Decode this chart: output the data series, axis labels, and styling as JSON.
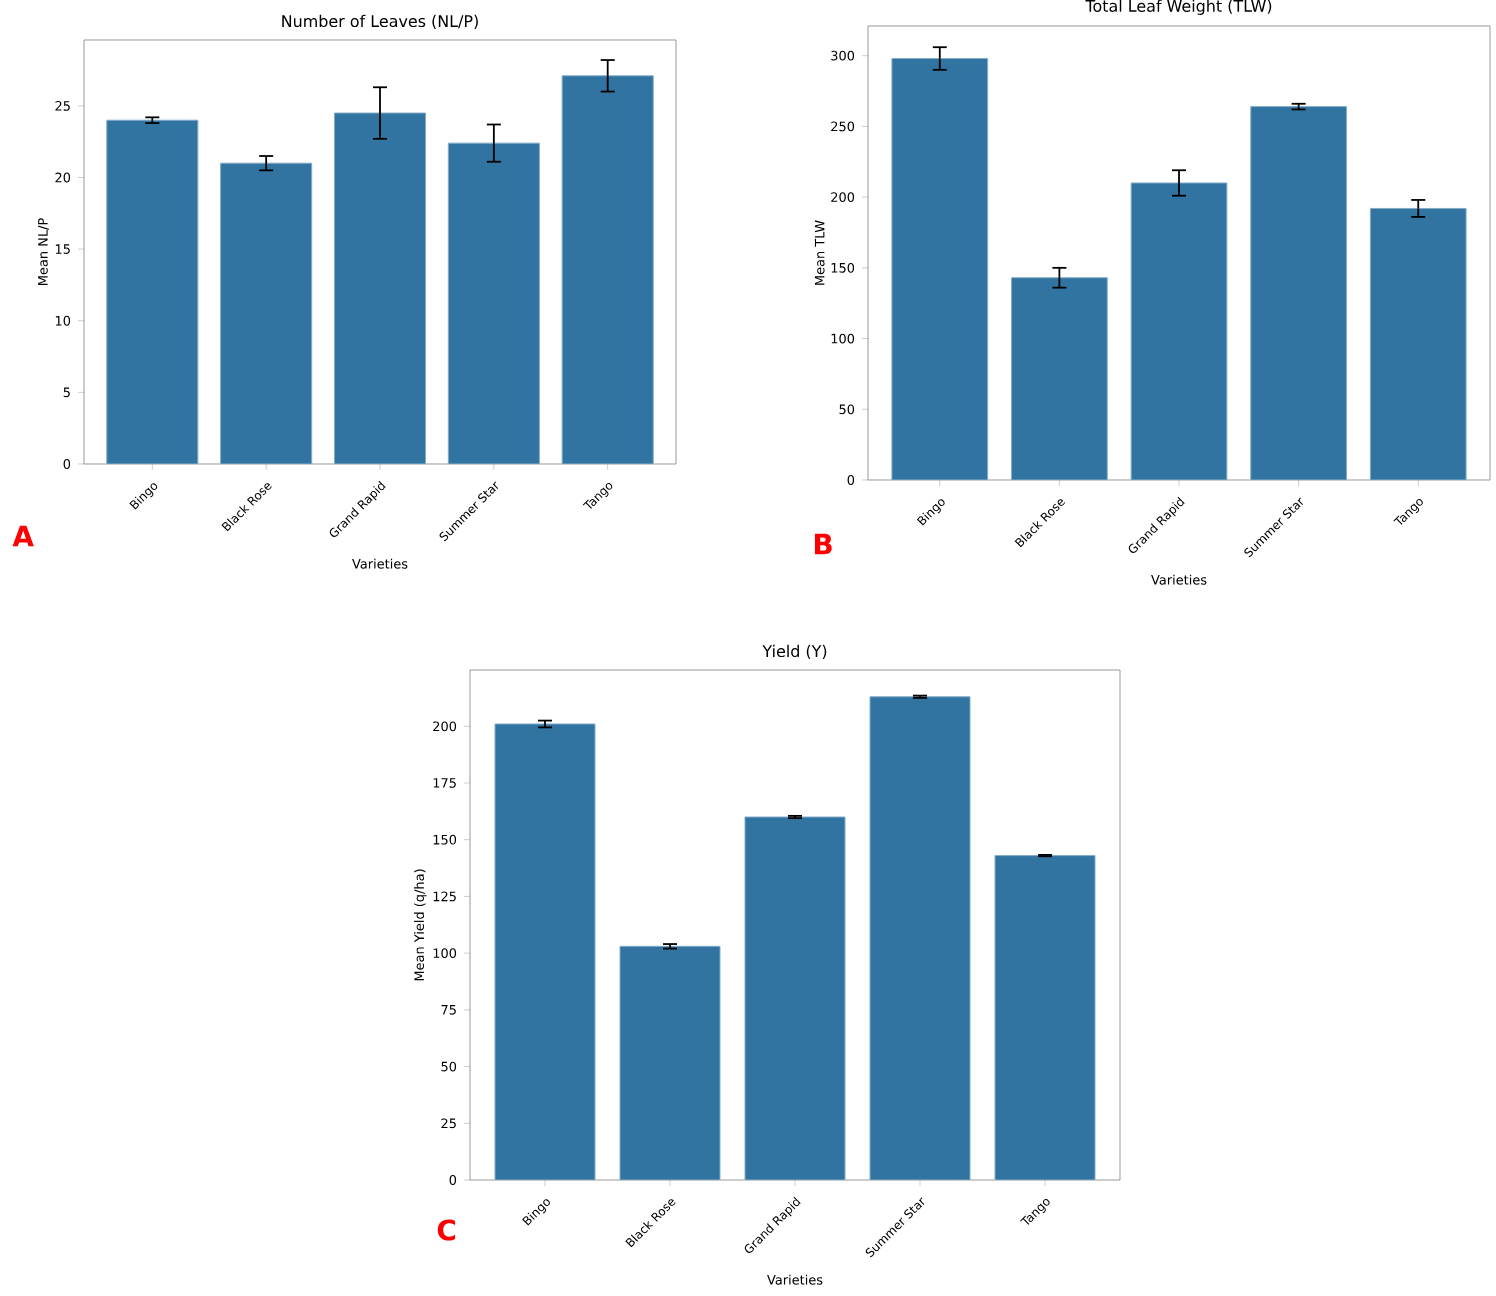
{
  "chart_data": [
    {
      "type": "bar",
      "title": "Number of Leaves (NL/P)",
      "xlabel": "Varieties",
      "ylabel": "Mean NL/P",
      "categories": [
        "Bingo",
        "Black Rose",
        "Grand Rapid",
        "Summer Star",
        "Tango"
      ],
      "values": [
        24.0,
        21.0,
        24.5,
        22.4,
        27.1
      ],
      "errors": [
        0.2,
        0.5,
        1.8,
        1.3,
        1.1
      ],
      "color": "#3274a1",
      "ylim": [
        0,
        29.6
      ],
      "yticks": [
        0,
        5,
        10,
        15,
        20,
        25
      ],
      "annotations": [
        "A"
      ]
    },
    {
      "type": "bar",
      "title": "Total Leaf Weight (TLW)",
      "xlabel": "Varieties",
      "ylabel": "Mean TLW",
      "categories": [
        "Bingo",
        "Black Rose",
        "Grand Rapid",
        "Summer Star",
        "Tango"
      ],
      "values": [
        298,
        143,
        210,
        264,
        192
      ],
      "errors": [
        8,
        7,
        9,
        2,
        6
      ],
      "color": "#3274a1",
      "ylim": [
        0,
        321
      ],
      "yticks": [
        0,
        50,
        100,
        150,
        200,
        250,
        300
      ],
      "annotations": [
        "B"
      ]
    },
    {
      "type": "bar",
      "title": "Yield (Y)",
      "xlabel": "Varieties",
      "ylabel": "Mean Yield (q/ha)",
      "categories": [
        "Bingo",
        "Black Rose",
        "Grand Rapid",
        "Summer Star",
        "Tango"
      ],
      "values": [
        201,
        103,
        160,
        213,
        143
      ],
      "errors": [
        1.5,
        1,
        0.5,
        0.5,
        0.3
      ],
      "color": "#3274a1",
      "ylim": [
        0,
        224.8
      ],
      "yticks": [
        0,
        25,
        50,
        75,
        100,
        125,
        150,
        175,
        200
      ],
      "annotations": [
        "C"
      ]
    }
  ]
}
